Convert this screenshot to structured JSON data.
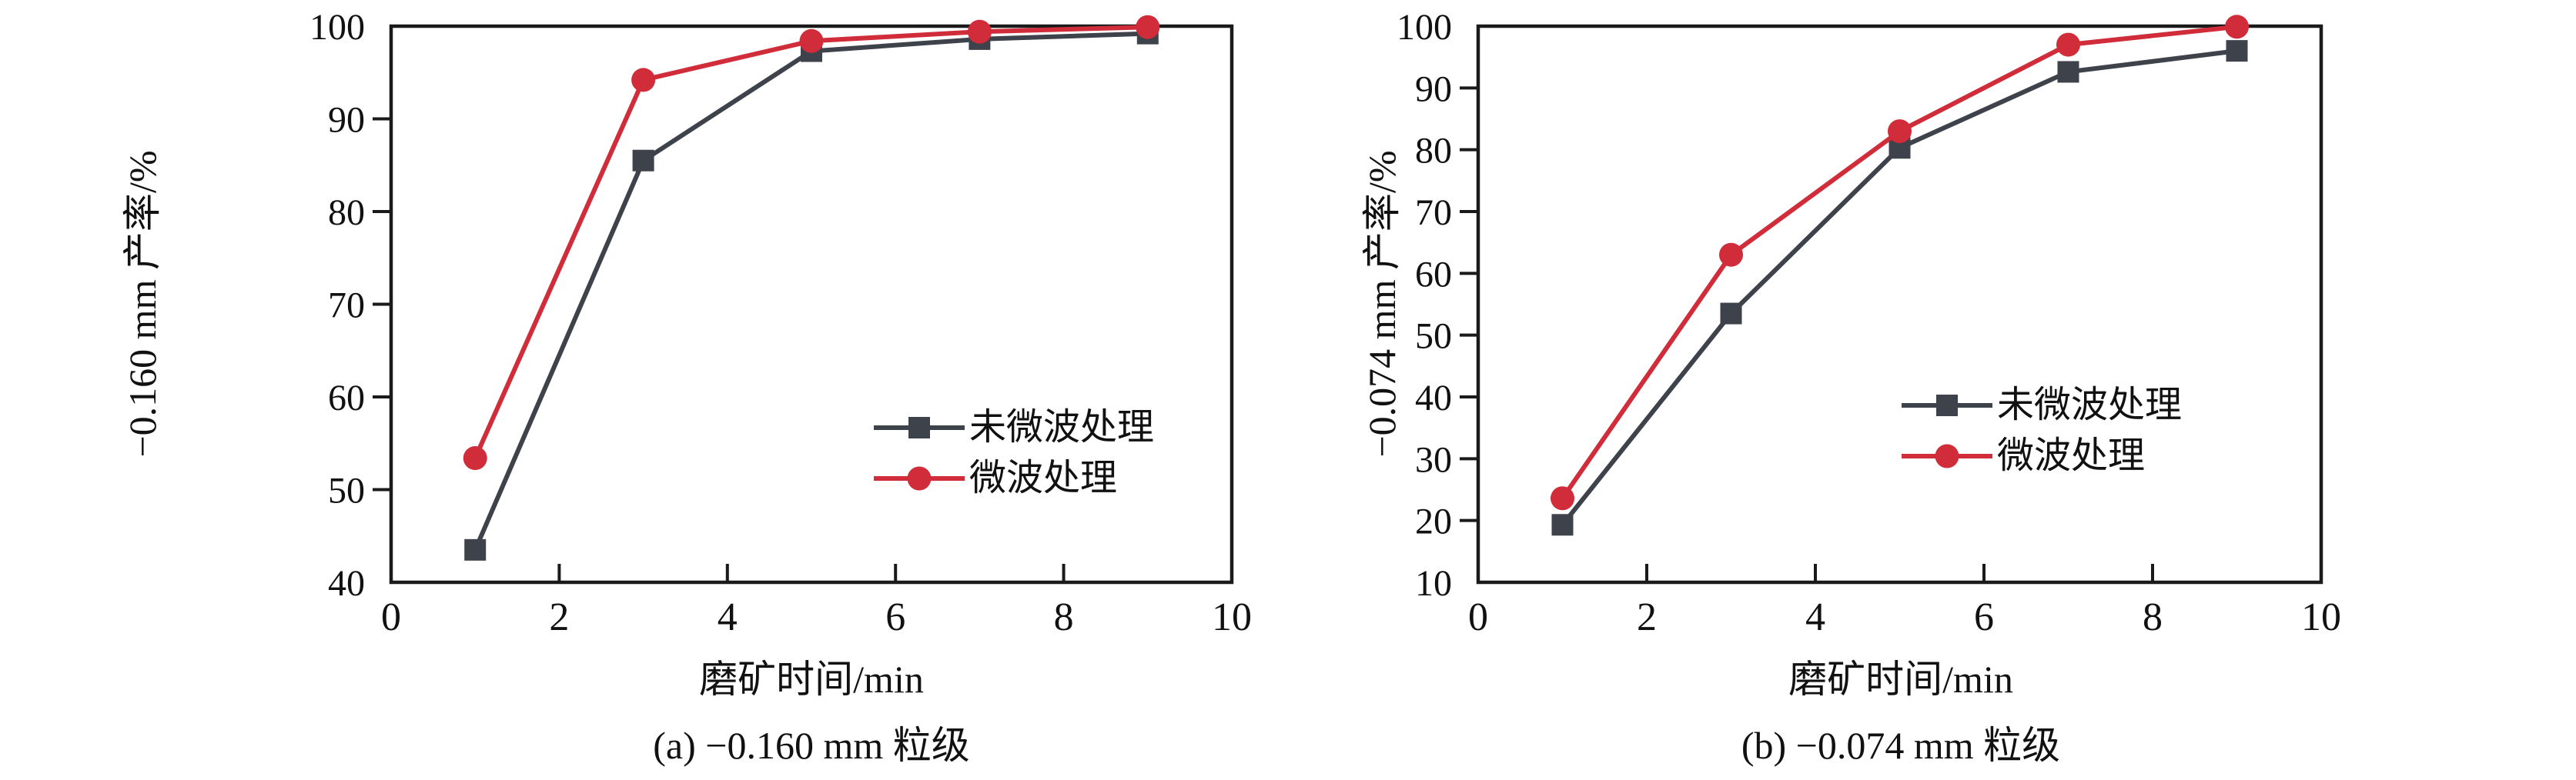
{
  "page": {
    "background": "#ffffff",
    "text_color": "#111111",
    "frame_color": "#1a1a1a"
  },
  "chart_data": [
    {
      "id": "a",
      "type": "line",
      "caption": "(a) −0.160 mm 粒级",
      "xlabel": "磨矿时间/min",
      "ylabel": "−0.160 mm 产率/%",
      "x": [
        1,
        3,
        5,
        7,
        9
      ],
      "xlim": [
        0,
        10
      ],
      "xticks": [
        0,
        2,
        4,
        6,
        8,
        10
      ],
      "ylim": [
        40,
        100
      ],
      "yticks": [
        40,
        50,
        60,
        70,
        80,
        90,
        100
      ],
      "grid": false,
      "legend_position": "lower-right-inside",
      "series": [
        {
          "name": "未微波处理",
          "marker": "square",
          "color": "#3e424a",
          "values": [
            43.5,
            85.5,
            97.3,
            98.6,
            99.2
          ]
        },
        {
          "name": "微波处理",
          "marker": "circle",
          "color": "#d02c3a",
          "values": [
            53.4,
            94.2,
            98.4,
            99.4,
            99.9
          ]
        }
      ]
    },
    {
      "id": "b",
      "type": "line",
      "caption": "(b) −0.074 mm 粒级",
      "xlabel": "磨矿时间/min",
      "ylabel": "−0.074 mm 产率/%",
      "x": [
        1,
        3,
        5,
        7,
        9
      ],
      "xlim": [
        0,
        10
      ],
      "xticks": [
        0,
        2,
        4,
        6,
        8,
        10
      ],
      "ylim": [
        10,
        100
      ],
      "yticks": [
        10,
        20,
        30,
        40,
        50,
        60,
        70,
        80,
        90,
        100
      ],
      "grid": false,
      "legend_position": "lower-right-inside",
      "series": [
        {
          "name": "未微波处理",
          "marker": "square",
          "color": "#3e424a",
          "values": [
            19.3,
            53.5,
            80.3,
            92.6,
            96.0
          ]
        },
        {
          "name": "微波处理",
          "marker": "circle",
          "color": "#d02c3a",
          "values": [
            23.6,
            63.0,
            83.0,
            97.0,
            99.9
          ]
        }
      ]
    }
  ]
}
